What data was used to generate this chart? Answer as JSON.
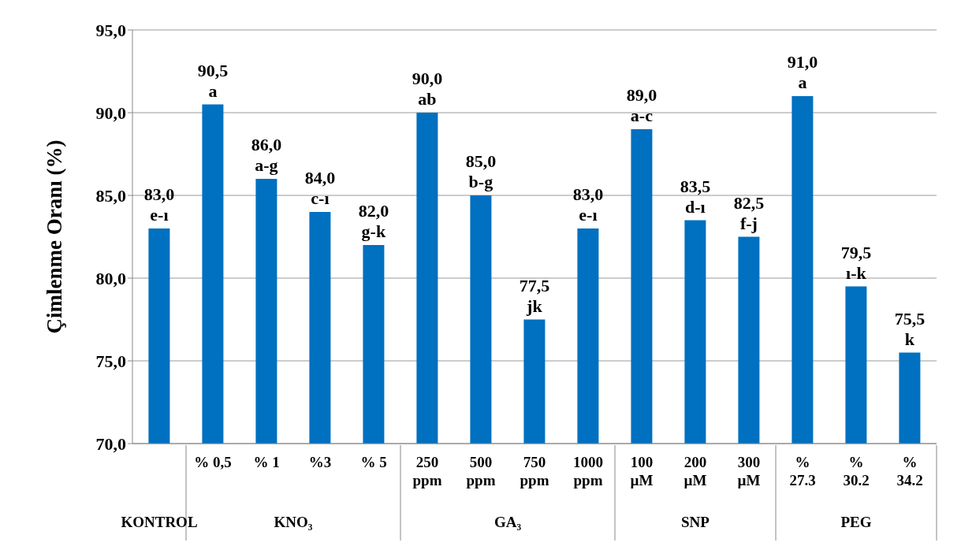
{
  "chart_data": {
    "type": "bar",
    "ylabel": "Çimlenme Oranı (%)",
    "categories": [
      null,
      "% 0,5",
      "% 1",
      "%3",
      "% 5",
      "250\nppm",
      "500\nppm",
      "750\nppm",
      "1000\nppm",
      "100\nµM",
      "200\nµM",
      "300\nµM",
      "%\n27.3",
      "%\n30.2",
      "%\n34.2"
    ],
    "values": [
      83.0,
      90.5,
      86.0,
      84.0,
      82.0,
      90.0,
      85.0,
      77.5,
      83.0,
      89.0,
      83.5,
      82.5,
      91.0,
      79.5,
      75.5
    ],
    "value_labels": [
      "83,0\ne-ı",
      "90,5\na",
      "86,0\na-g",
      "84,0\nc-ı",
      "82,0\ng-k",
      "90,0\nab",
      "85,0\nb-g",
      "77,5\njk",
      "83,0\ne-ı",
      "89,0\na-c",
      "83,5\nd-ı",
      "82,5\nf-j",
      "91,0\na",
      "79,5\nı-k",
      "75,5\nk"
    ],
    "color": "#0070c0",
    "ylim": [
      70,
      95
    ],
    "yticks": [
      {
        "value": 70,
        "label": "70,0"
      },
      {
        "value": 75,
        "label": "75,0"
      },
      {
        "value": 80,
        "label": "80,0"
      },
      {
        "value": 85,
        "label": "85,0"
      },
      {
        "value": 90,
        "label": "90,0"
      },
      {
        "value": 95,
        "label": "95,0"
      }
    ],
    "grid": "y",
    "annotations": [
      "KONTROL",
      "KNO₃",
      "GA₃",
      "SNP",
      "PEG"
    ]
  }
}
